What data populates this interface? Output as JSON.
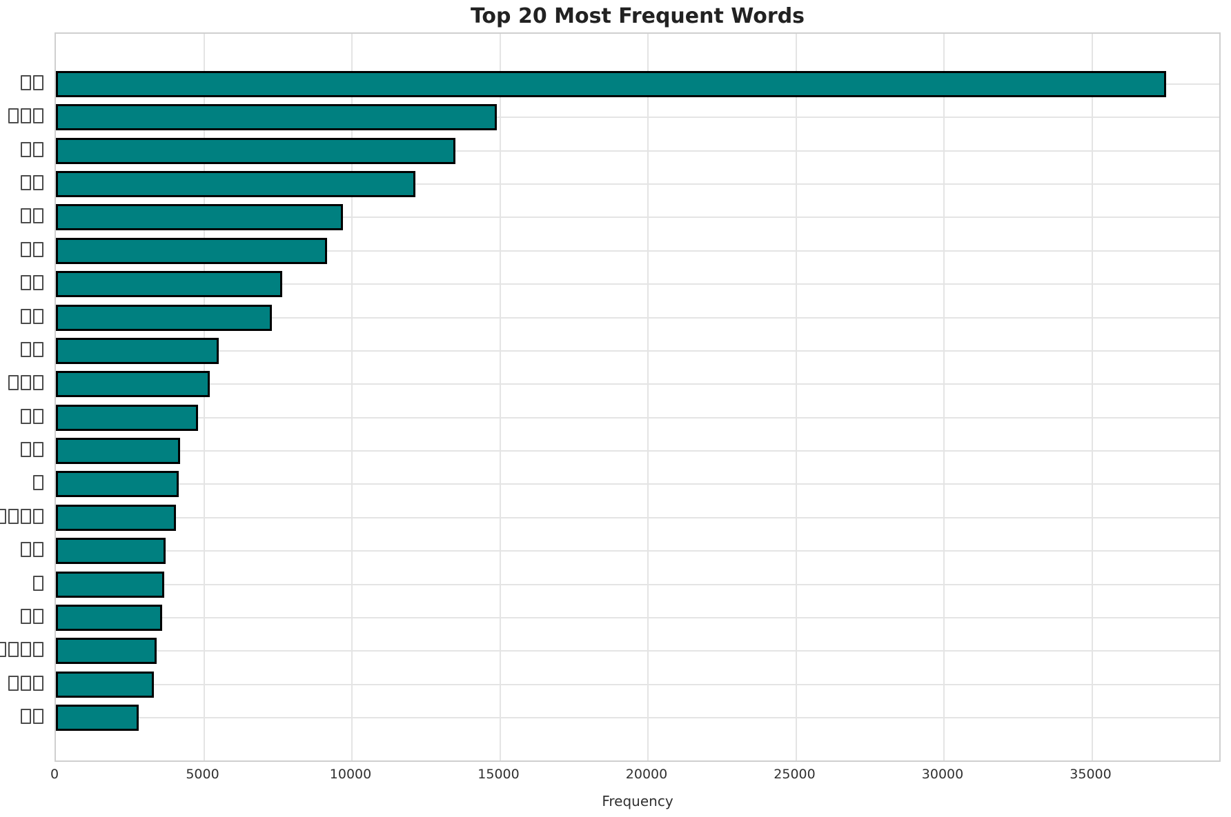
{
  "chart_data": {
    "type": "bar",
    "orientation": "horizontal",
    "title": "Top 20 Most Frequent Words",
    "xlabel": "Frequency",
    "ylabel": "",
    "xlim": [
      0,
      39300
    ],
    "x_ticks": [
      0,
      5000,
      10000,
      15000,
      20000,
      25000,
      30000,
      35000
    ],
    "grid": true,
    "legend": "none",
    "categories": [
      "□□",
      "□□□",
      "□□",
      "□□",
      "□□",
      "□□",
      "□□",
      "□□",
      "□□",
      "□□□",
      "□□",
      "□□",
      "□",
      "□□□□",
      "□□",
      "□",
      "□□",
      "□□□□",
      "□□□",
      "□□"
    ],
    "values": [
      37500,
      14900,
      13500,
      12150,
      9700,
      9150,
      7650,
      7300,
      5500,
      5200,
      4800,
      4200,
      4150,
      4050,
      3700,
      3650,
      3600,
      3400,
      3300,
      2800
    ],
    "colors": {
      "bar_fill": "#008080",
      "bar_edge": "#000000",
      "grid": "#e4e4e4",
      "frame": "#cfcfcf",
      "title_text": "#222222",
      "tick_text": "#303030"
    }
  }
}
